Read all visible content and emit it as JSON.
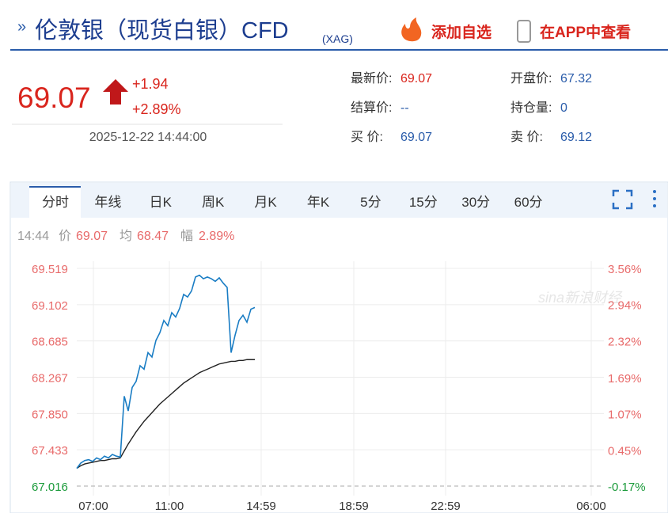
{
  "header": {
    "title": "伦敦银（现货白银）CFD",
    "code": "(XAG)",
    "add_watchlist": "添加自选",
    "open_app": "在APP中查看"
  },
  "quote": {
    "price": "69.07",
    "change": "+1.94",
    "change_pct": "+2.89%",
    "time": "2025-12-22 14:44:00"
  },
  "stats": [
    {
      "label": "最新价:",
      "value": "69.07"
    },
    {
      "label": "开盘价:",
      "value": "67.32"
    },
    {
      "label": "结算价:",
      "value": "--"
    },
    {
      "label": "持仓量:",
      "value": "0"
    },
    {
      "label": "买  价:",
      "value": "69.07"
    },
    {
      "label": "卖  价:",
      "value": "69.12"
    }
  ],
  "tabs": [
    "分时",
    "年线",
    "日K",
    "周K",
    "月K",
    "年K",
    "5分",
    "15分",
    "30分",
    "60分"
  ],
  "info": {
    "time": "14:44",
    "price": "69.07",
    "avg": "68.47",
    "amp_label": "幅",
    "amp": "2.89%"
  },
  "watermark": "sina新浪财经",
  "chart_data": {
    "type": "line",
    "xtick_labels": [
      "07:00",
      "11:00",
      "14:59",
      "18:59",
      "22:59",
      "06:00"
    ],
    "ylim": [
      67.016,
      69.519
    ],
    "yticks": [
      67.016,
      67.433,
      {
        "value": 67.85,
        "label": "67.850"
      },
      68.267,
      68.685,
      69.102,
      69.519
    ],
    "y2lim": [
      -0.17,
      3.56
    ],
    "y2ticks": [
      {
        "value": -0.17,
        "label": "-0.17%"
      },
      {
        "value": 0.45,
        "label": "0.45%"
      },
      {
        "value": 1.07,
        "label": "1.07%"
      },
      {
        "value": 1.69,
        "label": "1.69%"
      },
      {
        "value": 2.32,
        "label": "2.32%"
      },
      {
        "value": 2.94,
        "label": "2.94%"
      },
      {
        "value": 3.56,
        "label": "3.56%"
      }
    ],
    "grid": true,
    "series": [
      {
        "name": "价",
        "color": "#1a7dc4",
        "values": [
          67.22,
          67.28,
          67.31,
          67.32,
          67.3,
          67.34,
          67.32,
          67.36,
          67.34,
          67.38,
          67.36,
          67.35,
          68.05,
          67.88,
          68.15,
          68.22,
          68.4,
          68.36,
          68.55,
          68.5,
          68.69,
          68.78,
          68.92,
          68.86,
          69.01,
          68.96,
          69.06,
          69.22,
          69.19,
          69.26,
          69.42,
          69.44,
          69.4,
          69.42,
          69.4,
          69.37,
          69.41,
          69.35,
          69.3,
          68.55,
          68.75,
          68.92,
          68.98,
          68.9,
          69.05,
          69.07
        ]
      },
      {
        "name": "均",
        "color": "#222222",
        "values": [
          67.22,
          67.25,
          67.27,
          67.28,
          67.29,
          67.3,
          67.31,
          67.31,
          67.32,
          67.33,
          67.33,
          67.34,
          67.42,
          67.5,
          67.57,
          67.64,
          67.7,
          67.76,
          67.81,
          67.86,
          67.91,
          67.96,
          68.0,
          68.04,
          68.08,
          68.12,
          68.16,
          68.2,
          68.23,
          68.26,
          68.29,
          68.32,
          68.34,
          68.36,
          68.38,
          68.4,
          68.42,
          68.43,
          68.44,
          68.45,
          68.45,
          68.46,
          68.46,
          68.47,
          68.47,
          68.47
        ]
      }
    ]
  }
}
